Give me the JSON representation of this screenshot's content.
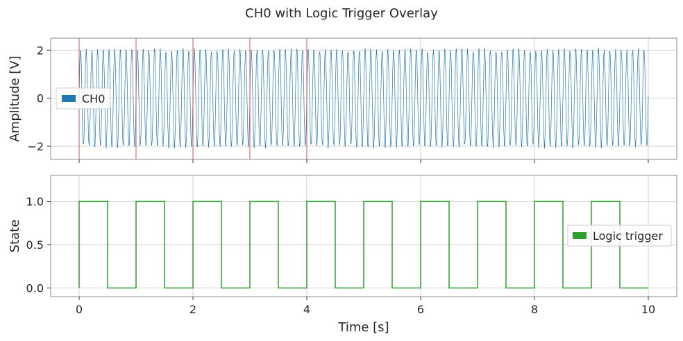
{
  "figure": {
    "title": "CH0 with Logic Trigger Overlay"
  },
  "colors": {
    "signal": "#1f77b4",
    "trigger": "#2ca02c",
    "marker": "#e8474c",
    "grid": "#c8c8c8",
    "spine": "#8c8c8c"
  },
  "chart_data": [
    {
      "type": "line",
      "subplot": "top",
      "ylabel": "Amplitude [V]",
      "xlim": [
        -0.5,
        10.5
      ],
      "ylim": [
        -2.55,
        2.5
      ],
      "xticks": [
        0,
        2,
        4,
        6,
        8,
        10
      ],
      "xtick_labels_visible": false,
      "yticks": [
        -2,
        0,
        2
      ],
      "ytick_labels": [
        "−2",
        "0",
        "2"
      ],
      "grid": true,
      "legend": {
        "placement": "center-left",
        "entries": [
          "CH0"
        ]
      },
      "series": [
        {
          "name": "CH0",
          "description_form": "sinusoid",
          "amplitude_V": 2.0,
          "frequency_Hz": 10,
          "noise_amplitude_V": 0.1,
          "x_range": [
            0,
            10
          ]
        }
      ],
      "vertical_markers_x": [
        0,
        1,
        2,
        3,
        4
      ]
    },
    {
      "type": "line",
      "subplot": "bottom",
      "xlabel": "Time [s]",
      "ylabel": "State",
      "xlim": [
        -0.5,
        10.5
      ],
      "ylim": [
        -0.1,
        1.3
      ],
      "xticks": [
        0,
        2,
        4,
        6,
        8,
        10
      ],
      "xtick_labels": [
        "0",
        "2",
        "4",
        "6",
        "8",
        "10"
      ],
      "yticks": [
        0.0,
        0.5,
        1.0
      ],
      "ytick_labels": [
        "0.0",
        "0.5",
        "1.0"
      ],
      "grid": true,
      "legend": {
        "placement": "center-right",
        "entries": [
          "Logic trigger"
        ]
      },
      "series": [
        {
          "name": "Logic trigger",
          "step": true,
          "x": [
            0,
            0.5,
            1,
            1.5,
            2,
            2.5,
            3,
            3.5,
            4,
            4.5,
            5,
            5.5,
            6,
            6.5,
            7,
            7.5,
            8,
            8.5,
            9,
            9.5,
            10
          ],
          "y": [
            1,
            0,
            1,
            0,
            1,
            0,
            1,
            0,
            1,
            0,
            1,
            0,
            1,
            0,
            1,
            0,
            1,
            0,
            1,
            0,
            0
          ]
        }
      ]
    }
  ]
}
